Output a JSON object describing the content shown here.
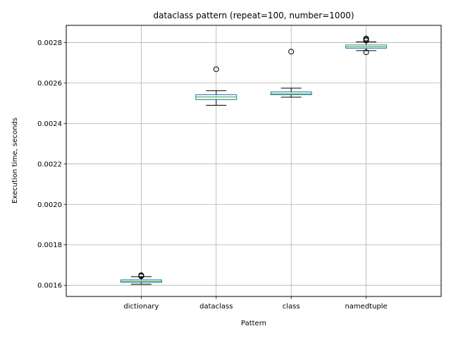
{
  "chart_data": {
    "type": "box",
    "title": "dataclass pattern (repeat=100, number=1000)",
    "xlabel": "Pattern",
    "ylabel": "Execution time, seconds",
    "categories": [
      "dictionary",
      "dataclass",
      "class",
      "namedtuple"
    ],
    "ylim": [
      0.001545,
      0.002885
    ],
    "yticks": [
      0.0016,
      0.0018,
      0.002,
      0.0022,
      0.0024,
      0.0026,
      0.0028
    ],
    "ytick_labels": [
      "0.0016",
      "0.0018",
      "0.0020",
      "0.0022",
      "0.0024",
      "0.0026",
      "0.0028"
    ],
    "grid": true,
    "boxes": [
      {
        "category": "dictionary",
        "whisker_low": 0.001605,
        "q1": 0.001614,
        "median": 0.00162,
        "q3": 0.001627,
        "whisker_high": 0.001643,
        "outliers": [
          0.001647,
          0.00165,
          0.001645
        ]
      },
      {
        "category": "dataclass",
        "whisker_low": 0.00249,
        "q1": 0.002518,
        "median": 0.002531,
        "q3": 0.002542,
        "whisker_high": 0.002562,
        "outliers": [
          0.002668
        ]
      },
      {
        "category": "class",
        "whisker_low": 0.00253,
        "q1": 0.002542,
        "median": 0.002547,
        "q3": 0.002556,
        "whisker_high": 0.002575,
        "outliers": [
          0.002755
        ]
      },
      {
        "category": "namedtuple",
        "whisker_low": 0.00276,
        "q1": 0.002772,
        "median": 0.002779,
        "q3": 0.002788,
        "whisker_high": 0.002803,
        "outliers": [
          0.002752,
          0.00281,
          0.002815,
          0.00282
        ]
      }
    ],
    "colors": {
      "box": "#1f77b4",
      "median": "#2ca02c",
      "whisker": "#000000",
      "grid": "#b0b0b0",
      "outlier": "#000000"
    }
  }
}
